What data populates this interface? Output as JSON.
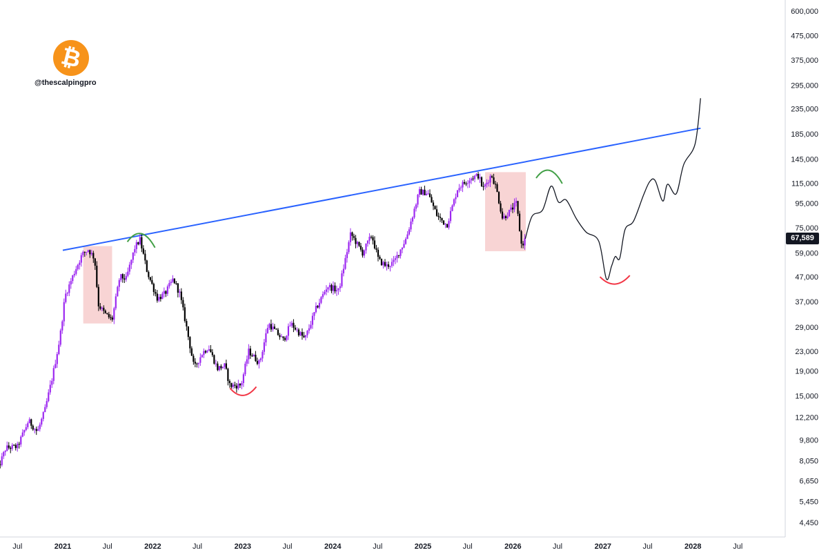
{
  "watermark": {
    "handle": "@thescalpingpro",
    "logo": "bitcoin-logo",
    "logo_color": "#F7931A"
  },
  "current_price_label": "67,589",
  "chart_data": {
    "type": "candlestick",
    "title": "",
    "y_scale": "log",
    "y_ticks": [
      600000,
      475000,
      375000,
      295000,
      235000,
      185000,
      145000,
      115000,
      95000,
      75000,
      59000,
      47000,
      37000,
      29000,
      23000,
      19000,
      15000,
      12200,
      9800,
      8050,
      6650,
      5450,
      4450
    ],
    "y_tick_labels": [
      "600,000",
      "475,000",
      "375,000",
      "295,000",
      "235,000",
      "185,000",
      "145,000",
      "115,000",
      "95,000",
      "75,000",
      "59,000",
      "47,000",
      "37,000",
      "29,000",
      "23,000",
      "19,000",
      "15,000",
      "12,200",
      "9,800",
      "8,050",
      "6,650",
      "5,450",
      "4,450"
    ],
    "x_ticks": [
      {
        "t": "2020-07-01",
        "label": "Jul",
        "bold": false
      },
      {
        "t": "2021-01-01",
        "label": "2021",
        "bold": true
      },
      {
        "t": "2021-07-01",
        "label": "Jul",
        "bold": false
      },
      {
        "t": "2022-01-01",
        "label": "2022",
        "bold": true
      },
      {
        "t": "2022-07-01",
        "label": "Jul",
        "bold": false
      },
      {
        "t": "2023-01-01",
        "label": "2023",
        "bold": true
      },
      {
        "t": "2023-07-01",
        "label": "Jul",
        "bold": false
      },
      {
        "t": "2024-01-01",
        "label": "2024",
        "bold": true
      },
      {
        "t": "2024-07-01",
        "label": "Jul",
        "bold": false
      },
      {
        "t": "2025-01-01",
        "label": "2025",
        "bold": true
      },
      {
        "t": "2025-07-01",
        "label": "Jul",
        "bold": false
      },
      {
        "t": "2026-01-01",
        "label": "2026",
        "bold": true
      },
      {
        "t": "2026-07-01",
        "label": "Jul",
        "bold": false
      },
      {
        "t": "2027-01-01",
        "label": "2027",
        "bold": true
      },
      {
        "t": "2027-07-01",
        "label": "Jul",
        "bold": false
      },
      {
        "t": "2028-01-01",
        "label": "2028",
        "bold": true
      },
      {
        "t": "2028-07-01",
        "label": "Jul",
        "bold": false
      }
    ],
    "price_series": {
      "name": "",
      "up_color": "#9C27F0",
      "down_color": "#000000",
      "points": [
        [
          "2020-04-01",
          6900
        ],
        [
          "2020-05-15",
          9100
        ],
        [
          "2020-07-01",
          9200
        ],
        [
          "2020-08-15",
          11800
        ],
        [
          "2020-09-20",
          10600
        ],
        [
          "2020-10-20",
          13000
        ],
        [
          "2020-11-20",
          18000
        ],
        [
          "2020-12-20",
          26000
        ],
        [
          "2021-01-10",
          39000
        ],
        [
          "2021-02-20",
          50000
        ],
        [
          "2021-03-20",
          58000
        ],
        [
          "2021-04-14",
          61000
        ],
        [
          "2021-05-10",
          56000
        ],
        [
          "2021-05-25",
          36000
        ],
        [
          "2021-06-20",
          33000
        ],
        [
          "2021-07-20",
          31000
        ],
        [
          "2021-08-20",
          47000
        ],
        [
          "2021-09-15",
          46000
        ],
        [
          "2021-10-20",
          62000
        ],
        [
          "2021-11-10",
          67000
        ],
        [
          "2021-12-10",
          49000
        ],
        [
          "2022-01-20",
          38000
        ],
        [
          "2022-02-20",
          40000
        ],
        [
          "2022-03-25",
          46000
        ],
        [
          "2022-04-20",
          40000
        ],
        [
          "2022-05-15",
          30000
        ],
        [
          "2022-06-18",
          19500
        ],
        [
          "2022-07-20",
          22500
        ],
        [
          "2022-08-15",
          24000
        ],
        [
          "2022-09-20",
          19500
        ],
        [
          "2022-10-20",
          20000
        ],
        [
          "2022-11-10",
          16500
        ],
        [
          "2022-12-25",
          16600
        ],
        [
          "2023-01-25",
          23000
        ],
        [
          "2023-03-10",
          20500
        ],
        [
          "2023-04-15",
          30000
        ],
        [
          "2023-06-15",
          25500
        ],
        [
          "2023-07-15",
          30000
        ],
        [
          "2023-09-10",
          25800
        ],
        [
          "2023-10-25",
          34500
        ],
        [
          "2023-12-10",
          43000
        ],
        [
          "2024-01-25",
          41000
        ],
        [
          "2024-03-14",
          71000
        ],
        [
          "2024-05-01",
          59000
        ],
        [
          "2024-06-07",
          70000
        ],
        [
          "2024-07-05",
          55000
        ],
        [
          "2024-08-05",
          52000
        ],
        [
          "2024-09-06",
          54000
        ],
        [
          "2024-10-25",
          68000
        ],
        [
          "2024-12-17",
          106000
        ],
        [
          "2025-01-20",
          105000
        ],
        [
          "2025-02-28",
          84000
        ],
        [
          "2025-04-08",
          77000
        ],
        [
          "2025-05-22",
          110000
        ],
        [
          "2025-07-14",
          121000
        ],
        [
          "2025-08-14",
          124000
        ],
        [
          "2025-09-01",
          109000
        ],
        [
          "2025-10-06",
          125000
        ],
        [
          "2025-10-25",
          110000
        ],
        [
          "2025-11-20",
          82000
        ],
        [
          "2025-12-20",
          88000
        ],
        [
          "2026-01-15",
          95000
        ],
        [
          "2026-02-05",
          63000
        ],
        [
          "2026-02-20",
          67589
        ]
      ]
    },
    "projection_series": {
      "name": "",
      "color": "#131722",
      "points": [
        [
          "2026-02-20",
          67589
        ],
        [
          "2026-03-20",
          84000
        ],
        [
          "2026-05-01",
          89000
        ],
        [
          "2026-06-05",
          112000
        ],
        [
          "2026-07-05",
          96000
        ],
        [
          "2026-08-05",
          98000
        ],
        [
          "2026-09-15",
          82000
        ],
        [
          "2026-10-25",
          72000
        ],
        [
          "2026-12-15",
          66000
        ],
        [
          "2027-01-15",
          46000
        ],
        [
          "2027-02-05",
          52000
        ],
        [
          "2027-02-20",
          57000
        ],
        [
          "2027-03-10",
          56000
        ],
        [
          "2027-04-01",
          74000
        ],
        [
          "2027-05-05",
          80000
        ],
        [
          "2027-06-15",
          103000
        ],
        [
          "2027-07-10",
          117000
        ],
        [
          "2027-08-01",
          118000
        ],
        [
          "2027-09-01",
          97000
        ],
        [
          "2027-09-20",
          114000
        ],
        [
          "2027-10-25",
          104000
        ],
        [
          "2027-11-25",
          138000
        ],
        [
          "2028-01-10",
          168000
        ],
        [
          "2028-02-01",
          260000
        ]
      ]
    },
    "trendline": {
      "color": "#2962FF",
      "from": [
        "2021-01-01",
        60500
      ],
      "to": [
        "2028-02-01",
        195000
      ]
    },
    "highlight_boxes": [
      {
        "from": "2021-03-25",
        "to": "2021-07-20",
        "high": 63000,
        "low": 30000,
        "color": "#F5C6C6"
      },
      {
        "from": "2025-09-10",
        "to": "2026-02-22",
        "high": 128000,
        "low": 60000,
        "color": "#F5C6C6"
      }
    ],
    "top_arcs": [
      {
        "from": "2021-09-20",
        "to": "2022-01-10",
        "level": 72000,
        "color": "#43A047"
      },
      {
        "from": "2026-04-05",
        "to": "2026-07-20",
        "level": 132000,
        "color": "#43A047"
      }
    ],
    "bottom_arcs": [
      {
        "from": "2022-11-10",
        "to": "2023-02-25",
        "level": 15300,
        "color": "#F23645"
      },
      {
        "from": "2026-12-20",
        "to": "2027-04-20",
        "level": 44500,
        "color": "#F23645"
      }
    ],
    "current_price": 67589,
    "grid": false
  }
}
